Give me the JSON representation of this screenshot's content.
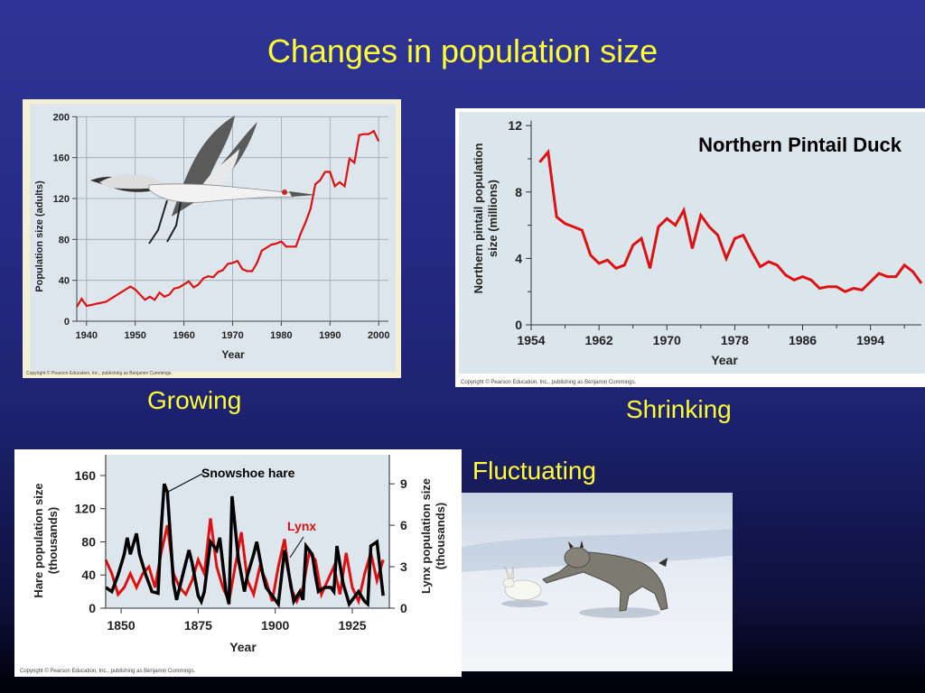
{
  "slide": {
    "title": "Changes in population size",
    "captions": {
      "growing": "Growing",
      "shrinking": "Shrinking",
      "fluctuating": "Fluctuating"
    },
    "copyright": "Copyright © Pearson Education, Inc., publishing as Benjamin Cummings."
  },
  "colors": {
    "title": "#ffff33",
    "chart_bg_crane": "#dde6ec",
    "frame_crane": "#f6f0d2",
    "chart_bg_duck": "#dbe5ec",
    "series_red": "#dd1111",
    "series_black": "#000000"
  },
  "chart_data": [
    {
      "type": "line",
      "xlabel": "Year",
      "ylabel": "Population size (adults)",
      "xlim": [
        1938,
        2002
      ],
      "ylim": [
        0,
        210
      ],
      "x_ticks": [
        "1940",
        "1950",
        "1960",
        "1970",
        "1980",
        "1990",
        "2000"
      ],
      "y_ticks": [
        "0",
        "40",
        "80",
        "120",
        "160",
        "200"
      ],
      "grid": true,
      "series": [
        {
          "color": "#dd1111",
          "x": [
            1938,
            1939,
            1940,
            1941,
            1942,
            1943,
            1944,
            1945,
            1946,
            1947,
            1948,
            1949,
            1950,
            1951,
            1952,
            1953,
            1954,
            1955,
            1956,
            1957,
            1958,
            1959,
            1960,
            1961,
            1962,
            1963,
            1964,
            1965,
            1966,
            1967,
            1968,
            1969,
            1970,
            1971,
            1972,
            1973,
            1974,
            1975,
            1976,
            1977,
            1978,
            1979,
            1980,
            1981,
            1982,
            1983,
            1984,
            1985,
            1986,
            1987,
            1988,
            1989,
            1990,
            1991,
            1992,
            1993,
            1994,
            1995,
            1996,
            1997,
            1998,
            1999,
            2000
          ],
          "y": [
            14,
            22,
            15,
            16,
            17,
            18,
            19,
            22,
            25,
            28,
            31,
            34,
            31,
            26,
            21,
            24,
            21,
            28,
            24,
            26,
            32,
            33,
            36,
            39,
            33,
            36,
            42,
            44,
            43,
            48,
            50,
            56,
            57,
            59,
            51,
            49,
            49,
            57,
            69,
            72,
            75,
            76,
            78,
            73,
            73,
            73,
            86,
            97,
            110,
            134,
            138,
            146,
            146,
            132,
            136,
            132,
            159,
            155,
            182,
            183,
            183,
            186,
            176
          ]
        }
      ]
    },
    {
      "type": "line",
      "title": "Northern Pintail Duck",
      "xlabel": "Year",
      "ylabel": "Northern pintail population size (millions)",
      "xlim": [
        1954,
        2000
      ],
      "ylim": [
        0,
        12.5
      ],
      "x_ticks": [
        "1954",
        "1962",
        "1970",
        "1978",
        "1986",
        "1994"
      ],
      "y_ticks": [
        "0",
        "4",
        "8",
        "12"
      ],
      "grid": false,
      "series": [
        {
          "color": "#dd1111",
          "x": [
            1955,
            1956,
            1957,
            1958,
            1959,
            1960,
            1961,
            1962,
            1963,
            1964,
            1965,
            1966,
            1967,
            1968,
            1969,
            1970,
            1971,
            1972,
            1973,
            1974,
            1975,
            1976,
            1977,
            1978,
            1979,
            1980,
            1981,
            1982,
            1983,
            1984,
            1985,
            1986,
            1987,
            1988,
            1989,
            1990,
            1991,
            1992,
            1993,
            1994,
            1995,
            1996,
            1997,
            1998,
            1999,
            2000
          ],
          "y": [
            9.8,
            10.4,
            6.5,
            6.1,
            5.9,
            5.7,
            4.2,
            3.7,
            3.9,
            3.4,
            3.6,
            4.8,
            5.2,
            3.4,
            5.9,
            6.4,
            6.0,
            6.9,
            4.6,
            6.6,
            5.9,
            5.4,
            4.0,
            5.2,
            5.4,
            4.4,
            3.5,
            3.8,
            3.6,
            3.0,
            2.7,
            2.9,
            2.7,
            2.2,
            2.3,
            2.3,
            2.0,
            2.2,
            2.1,
            2.6,
            3.1,
            2.9,
            2.9,
            3.6,
            3.2,
            2.5
          ]
        }
      ]
    },
    {
      "type": "line",
      "xlabel": "Year",
      "ylabel": "Hare population size (thousands)",
      "y2label": "Lynx population size (thousands)",
      "xlim": [
        1845,
        1937
      ],
      "ylim": [
        0,
        185
      ],
      "y2lim": [
        0,
        11.1
      ],
      "x_ticks": [
        "1850",
        "1875",
        "1900",
        "1925"
      ],
      "y_ticks": [
        "0",
        "40",
        "80",
        "120",
        "160"
      ],
      "y2_ticks": [
        "0",
        "3",
        "6",
        "9"
      ],
      "annotations": [
        "Snowshoe hare",
        "Lynx"
      ],
      "grid": false,
      "series": [
        {
          "name": "Snowshoe hare",
          "color": "#000000",
          "axis": "left",
          "x": [
            1845,
            1847,
            1849,
            1851,
            1852,
            1853,
            1855,
            1856,
            1858,
            1860,
            1862,
            1863,
            1864,
            1865,
            1867,
            1868,
            1870,
            1872,
            1873,
            1875,
            1876,
            1877,
            1879,
            1881,
            1882,
            1884,
            1885,
            1886,
            1888,
            1890,
            1891,
            1893,
            1894,
            1896,
            1897,
            1899,
            1900,
            1901,
            1903,
            1904,
            1906,
            1908,
            1909,
            1910,
            1912,
            1913,
            1914,
            1916,
            1918,
            1919,
            1920,
            1922,
            1924,
            1925,
            1927,
            1929,
            1930,
            1931,
            1933,
            1935
          ],
          "y": [
            25,
            20,
            40,
            65,
            85,
            65,
            90,
            65,
            40,
            20,
            18,
            95,
            150,
            140,
            30,
            10,
            40,
            70,
            55,
            15,
            8,
            20,
            80,
            70,
            85,
            20,
            5,
            135,
            60,
            20,
            40,
            65,
            80,
            40,
            25,
            15,
            10,
            5,
            70,
            50,
            8,
            20,
            10,
            75,
            65,
            40,
            20,
            25,
            25,
            20,
            75,
            30,
            5,
            10,
            20,
            8,
            5,
            75,
            80,
            15
          ]
        },
        {
          "name": "Lynx",
          "color": "#dd1111",
          "axis": "right",
          "x": [
            1845,
            1847,
            1849,
            1851,
            1853,
            1855,
            1857,
            1859,
            1861,
            1863,
            1865,
            1867,
            1869,
            1871,
            1873,
            1875,
            1877,
            1879,
            1881,
            1883,
            1885,
            1887,
            1889,
            1891,
            1893,
            1895,
            1897,
            1899,
            1901,
            1903,
            1905,
            1907,
            1909,
            1911,
            1913,
            1915,
            1917,
            1919,
            1921,
            1923,
            1925,
            1927,
            1929,
            1931,
            1933,
            1935
          ],
          "y": [
            3.5,
            2.5,
            1.0,
            1.5,
            2.5,
            1.5,
            2.5,
            3.0,
            1.5,
            4.0,
            6.0,
            2.5,
            1.5,
            1.0,
            2.0,
            3.5,
            2.5,
            6.5,
            3.0,
            1.5,
            0.5,
            3.0,
            5.5,
            2.0,
            1.0,
            3.0,
            2.0,
            0.5,
            3.0,
            5.0,
            1.5,
            0.5,
            1.5,
            4.0,
            3.5,
            1.0,
            2.0,
            3.0,
            1.0,
            4.0,
            1.5,
            0.5,
            2.5,
            4.0,
            2.0,
            3.5
          ]
        }
      ]
    }
  ]
}
